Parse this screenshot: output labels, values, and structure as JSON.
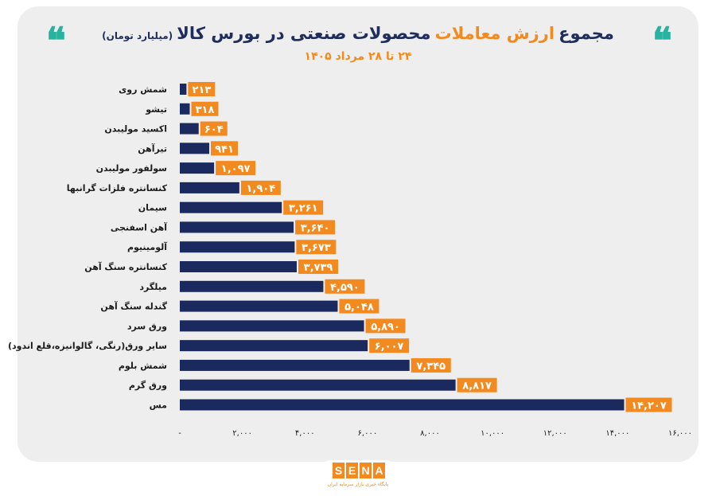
{
  "title": {
    "part1": "مجموع",
    "part2": "ارزش معاملات",
    "part3": "محصولات صنعتی در بورس کالا",
    "unit": "(میلیارد تومان)"
  },
  "subtitle": "۲۴ تا ۲۸ مرداد ۱۴۰۵",
  "quote_glyph": "❝",
  "logo": {
    "text": "SENA",
    "letters": [
      "S",
      "E",
      "N",
      "A"
    ],
    "tagline": "پایگاه خبری بازار سرمایه ایران"
  },
  "colors": {
    "bar": "#1a2a5e",
    "label_bg": "#f28a1f",
    "accent": "#f28a1f",
    "title": "#1f2d5c",
    "quote": "#27b3a0",
    "background": "#eeeeef"
  },
  "chart_data": {
    "type": "bar",
    "orientation": "horizontal",
    "title": "مجموع ارزش معاملات محصولات صنعتی در بورس کالا (میلیارد تومان)",
    "subtitle": "۲۴ تا ۲۸ مرداد ۱۴۰۵",
    "categories": [
      "شمش روی",
      "تیشو",
      "اکسید مولیبدن",
      "تیرآهن",
      "سولفور مولیبدن",
      "کنسانتره فلزات گرانبها",
      "سیمان",
      "آهن اسفنجی",
      "آلومینیوم",
      "کنسانتره سنگ آهن",
      "میلگرد",
      "گندله سنگ آهن",
      "ورق سرد",
      "سایر ورق(رنگی، گالوانیزه،قلع اندود)",
      "شمش بلوم",
      "ورق گرم",
      "مس"
    ],
    "values": [
      213,
      318,
      604,
      941,
      1097,
      1904,
      3261,
      3640,
      3673,
      3739,
      4590,
      5048,
      5890,
      6007,
      7345,
      8817,
      14207
    ],
    "value_labels": [
      "۲۱۳",
      "۳۱۸",
      "۶۰۴",
      "۹۴۱",
      "۱,۰۹۷",
      "۱,۹۰۴",
      "۳,۲۶۱",
      "۳,۶۴۰",
      "۳,۶۷۳",
      "۳,۷۳۹",
      "۴,۵۹۰",
      "۵,۰۴۸",
      "۵,۸۹۰",
      "۶,۰۰۷",
      "۷,۳۴۵",
      "۸,۸۱۷",
      "۱۴,۲۰۷"
    ],
    "xlim": [
      0,
      16000
    ],
    "xticks": [
      0,
      2000,
      4000,
      6000,
      8000,
      10000,
      12000,
      14000,
      16000
    ],
    "xtick_labels": [
      "-",
      "۲,۰۰۰",
      "۴,۰۰۰",
      "۶,۰۰۰",
      "۸,۰۰۰",
      "۱۰,۰۰۰",
      "۱۲,۰۰۰",
      "۱۴,۰۰۰",
      "۱۶,۰۰۰"
    ],
    "grid": false,
    "legend": "none"
  }
}
